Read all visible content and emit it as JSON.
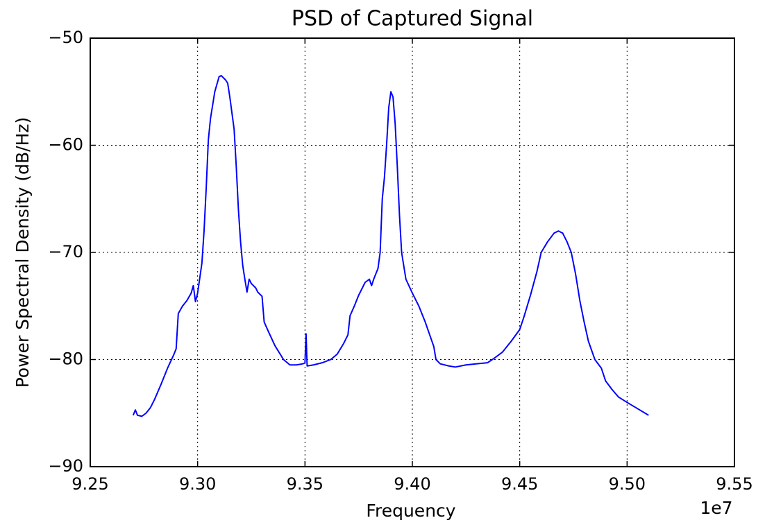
{
  "chart_data": {
    "type": "line",
    "title": "PSD of Captured Signal",
    "xlabel": "Frequency",
    "ylabel": "Power Spectral Density (dB/Hz)",
    "x_offset": "1e7",
    "color": "#0000ff",
    "grid": true,
    "xlim": [
      9.25,
      9.55
    ],
    "xticks": [
      9.25,
      {
        "value": 9.3,
        "label": "9.30"
      },
      9.35,
      {
        "value": 9.4,
        "label": "9.40"
      },
      9.45,
      {
        "value": 9.5,
        "label": "9.50"
      },
      9.55
    ],
    "ylim": [
      -90,
      -50
    ],
    "yticks": [
      {
        "value": -90,
        "label": "−90"
      },
      {
        "value": -80,
        "label": "−80"
      },
      {
        "value": -70,
        "label": "−70"
      },
      {
        "value": -60,
        "label": "−60"
      },
      {
        "value": -50,
        "label": "−50"
      }
    ],
    "x": [
      9.27,
      9.271,
      9.272,
      9.274,
      9.276,
      9.278,
      9.28,
      9.283,
      9.286,
      9.289,
      9.29,
      9.291,
      9.293,
      9.295,
      9.297,
      9.298,
      9.299,
      9.3,
      9.302,
      9.303,
      9.304,
      9.305,
      9.306,
      9.308,
      9.31,
      9.311,
      9.313,
      9.314,
      9.315,
      9.317,
      9.318,
      9.319,
      9.32,
      9.321,
      9.322,
      9.323,
      9.324,
      9.325,
      9.327,
      9.328,
      9.33,
      9.331,
      9.333,
      9.336,
      9.34,
      9.343,
      9.346,
      9.349,
      9.35,
      9.3505,
      9.351,
      9.354,
      9.358,
      9.362,
      9.365,
      9.368,
      9.37,
      9.371,
      9.373,
      9.375,
      9.378,
      9.38,
      9.381,
      9.382,
      9.384,
      9.385,
      9.386,
      9.387,
      9.388,
      9.389,
      9.39,
      9.391,
      9.392,
      9.393,
      9.394,
      9.395,
      9.397,
      9.4,
      9.403,
      9.406,
      9.41,
      9.411,
      9.413,
      9.417,
      9.42,
      9.425,
      9.43,
      9.435,
      9.438,
      9.442,
      9.446,
      9.45,
      9.452,
      9.455,
      9.458,
      9.46,
      9.463,
      9.466,
      9.468,
      9.47,
      9.472,
      9.474,
      9.476,
      9.478,
      9.48,
      9.482,
      9.485,
      9.488,
      9.49,
      9.493,
      9.496,
      9.5,
      9.505,
      9.51
    ],
    "values": [
      -85.2,
      -84.7,
      -85.2,
      -85.3,
      -85.0,
      -84.5,
      -83.7,
      -82.3,
      -80.8,
      -79.5,
      -79.0,
      -75.7,
      -75.0,
      -74.5,
      -73.8,
      -73.1,
      -74.6,
      -73.8,
      -71.0,
      -68.0,
      -64.0,
      -59.5,
      -57.5,
      -55.0,
      -53.6,
      -53.5,
      -53.9,
      -54.2,
      -55.5,
      -58.5,
      -62.0,
      -66.0,
      -69.0,
      -71.2,
      -72.5,
      -73.7,
      -72.5,
      -72.9,
      -73.3,
      -73.7,
      -74.1,
      -76.5,
      -77.4,
      -78.7,
      -80.0,
      -80.5,
      -80.5,
      -80.4,
      -80.3,
      -77.6,
      -80.6,
      -80.5,
      -80.3,
      -80.0,
      -79.5,
      -78.5,
      -77.7,
      -75.9,
      -75.0,
      -74.0,
      -72.8,
      -72.5,
      -73.1,
      -72.5,
      -71.5,
      -70.0,
      -65.0,
      -63.0,
      -60.0,
      -56.5,
      -55.0,
      -55.5,
      -58.0,
      -62.0,
      -66.5,
      -70.0,
      -72.5,
      -73.8,
      -75.0,
      -76.5,
      -78.8,
      -80.0,
      -80.4,
      -80.6,
      -80.7,
      -80.5,
      -80.4,
      -80.3,
      -79.9,
      -79.3,
      -78.3,
      -77.2,
      -76.0,
      -74.0,
      -71.8,
      -70.0,
      -69.0,
      -68.2,
      -68.0,
      -68.2,
      -69.0,
      -70.0,
      -72.0,
      -74.5,
      -76.5,
      -78.3,
      -80.0,
      -80.8,
      -82.0,
      -82.8,
      -83.5,
      -84.0,
      -84.6,
      -85.2
    ]
  }
}
